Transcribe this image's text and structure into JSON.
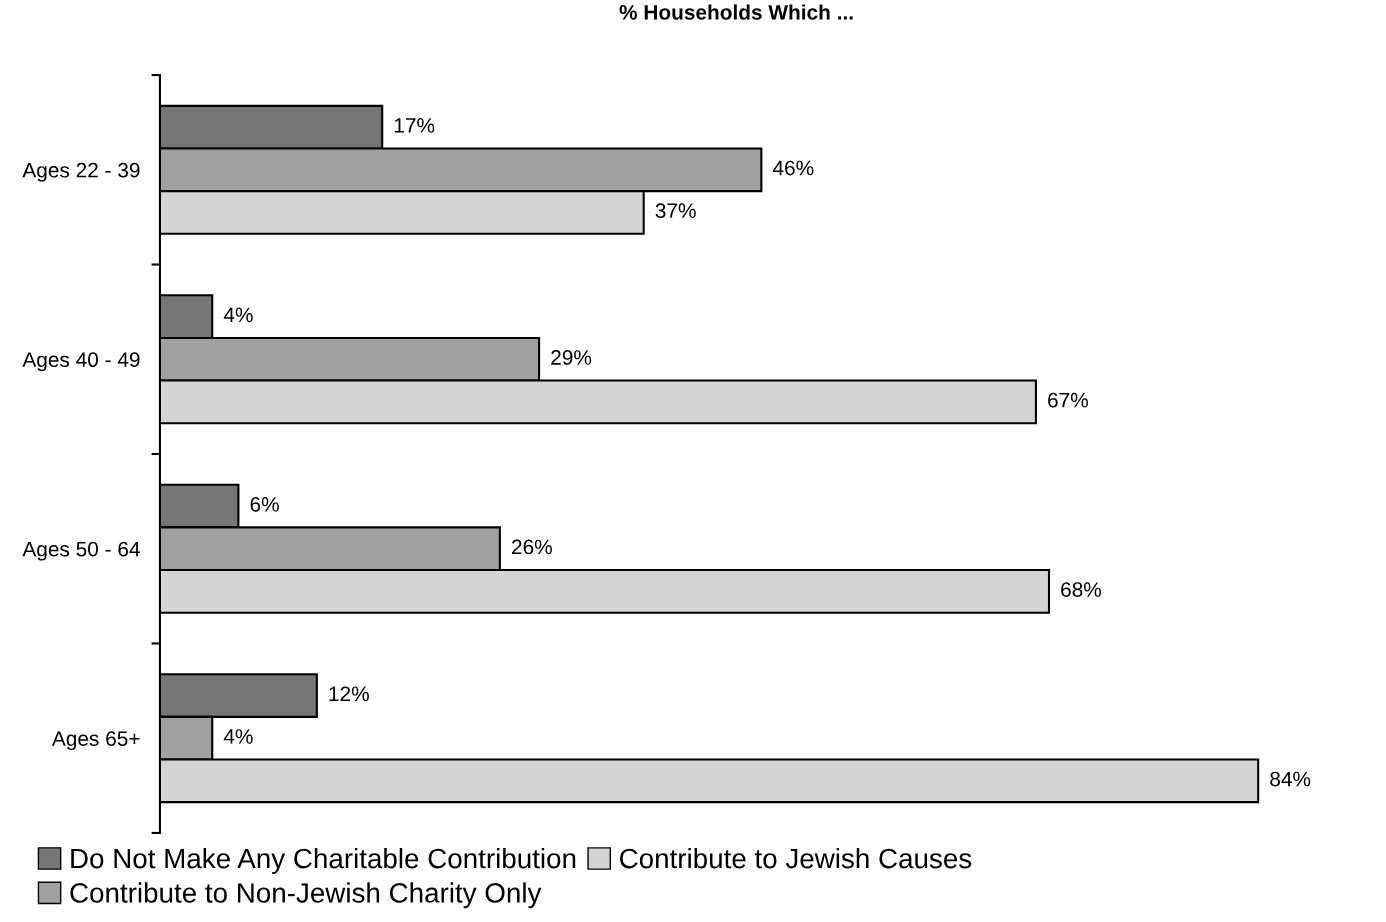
{
  "chart_data": {
    "type": "bar",
    "orientation": "horizontal",
    "title": "% Households Which ...",
    "categories": [
      "Ages 22 - 39",
      "Ages 40 - 49",
      "Ages 50 - 64",
      "Ages 65+"
    ],
    "series": [
      {
        "name": "Do Not Make Any Charitable Contribution",
        "color": "#767676",
        "values": [
          17,
          4,
          6,
          12
        ],
        "value_labels": [
          "17%",
          "4%",
          "6%",
          "12%"
        ]
      },
      {
        "name": "Contribute to Non-Jewish Charity Only",
        "color": "#a0a0a0",
        "values": [
          46,
          29,
          26,
          4
        ],
        "value_labels": [
          "46%",
          "29%",
          "26%",
          "4%"
        ]
      },
      {
        "name": "Contribute to Jewish Causes",
        "color": "#d4d4d4",
        "values": [
          37,
          67,
          68,
          84
        ],
        "value_labels": [
          "37%",
          "67%",
          "68%",
          "84%"
        ]
      }
    ],
    "legend": "bottom",
    "grid": false
  }
}
